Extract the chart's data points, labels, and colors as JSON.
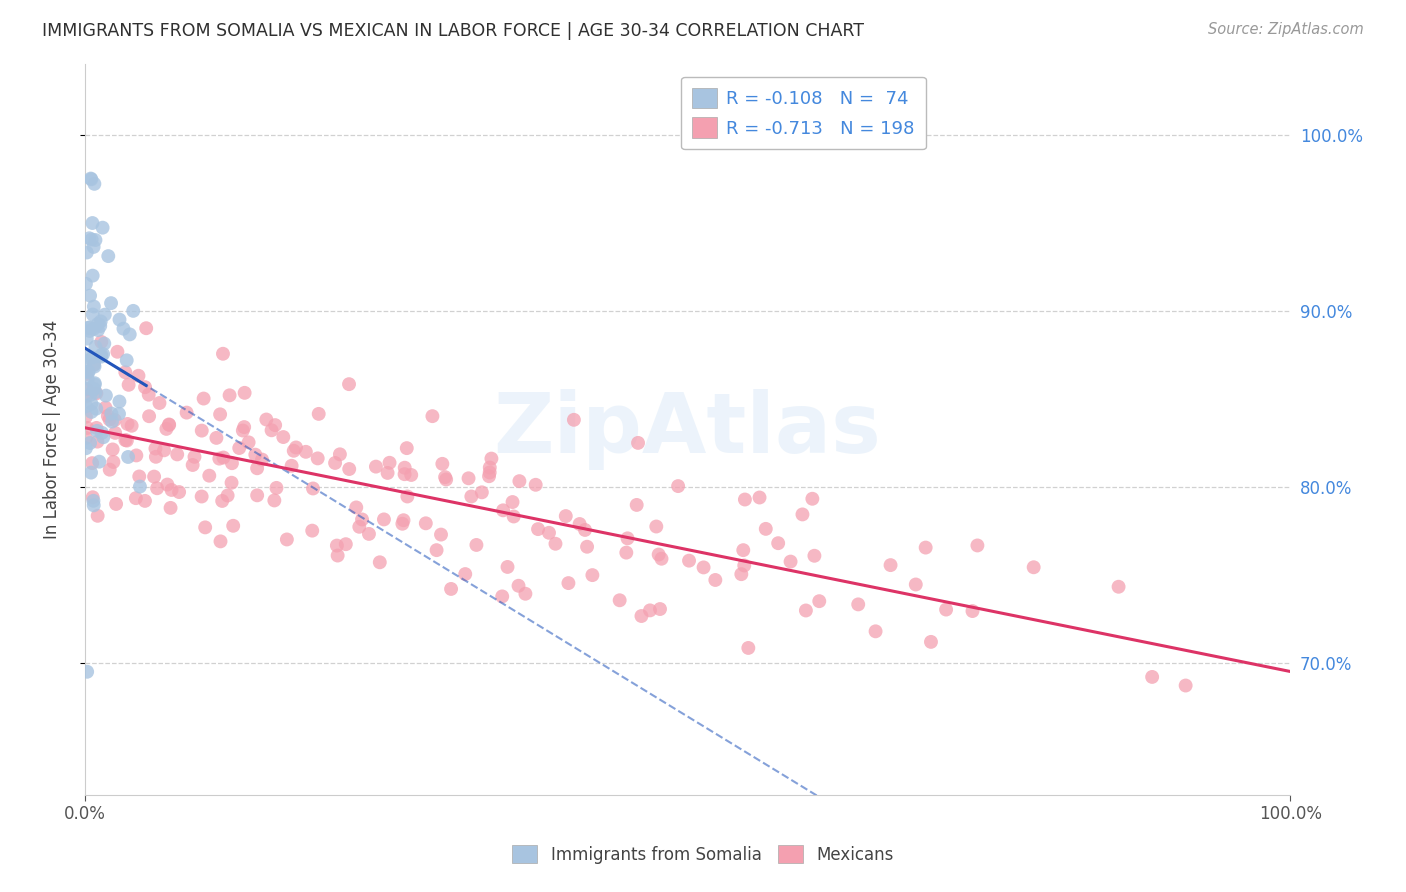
{
  "title": "IMMIGRANTS FROM SOMALIA VS MEXICAN IN LABOR FORCE | AGE 30-34 CORRELATION CHART",
  "source": "Source: ZipAtlas.com",
  "ylabel": "In Labor Force | Age 30-34",
  "xlim": [
    0.0,
    1.0
  ],
  "ylim": [
    0.625,
    1.04
  ],
  "yticks": [
    0.7,
    0.8,
    0.9,
    1.0
  ],
  "ytick_labels": [
    "70.0%",
    "80.0%",
    "90.0%",
    "100.0%"
  ],
  "somalia_R": -0.108,
  "somalia_N": 74,
  "mexican_R": -0.713,
  "mexican_N": 198,
  "somalia_color": "#a8c4e0",
  "mexican_color": "#f4a0b0",
  "somalia_line_color": "#2255bb",
  "mexican_line_color": "#dd3366",
  "background_color": "#ffffff",
  "grid_color": "#cccccc",
  "title_color": "#303030",
  "tick_color_right": "#4488dd",
  "legend_text_color": "#4488dd",
  "watermark": "ZipAtlas"
}
